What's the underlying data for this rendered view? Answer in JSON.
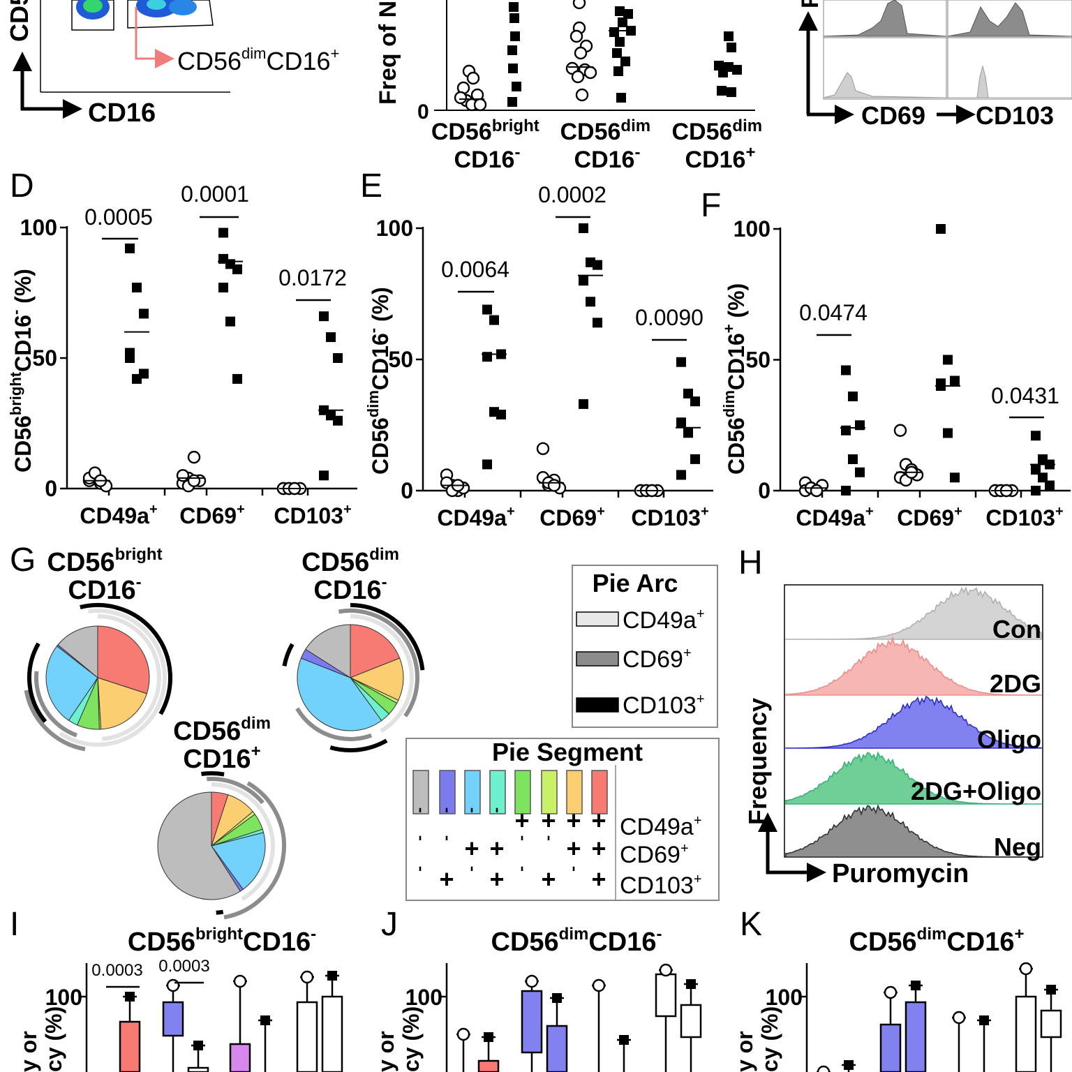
{
  "colors": {
    "ink": "#000000",
    "gate_arrow": "#f07c7c",
    "grid_box": "#888888",
    "hist_dark": "#8c8c8c",
    "hist_light": "#cfcfcf",
    "con": "#d4d4d4",
    "dg": "#f6b6b3",
    "oligo": "#8181ef",
    "dg_oligo": "#6fcf97",
    "neg": "#8f8f8f",
    "seg_grey": "#bdbdbd",
    "seg_blue": "#7b7bee",
    "seg_cyan": "#73d2fb",
    "seg_teal": "#6ef0cf",
    "seg_green": "#7ee35e",
    "seg_lime": "#c9f066",
    "seg_orange": "#fbce72",
    "seg_red": "#f77b72"
  },
  "panel_letters": {
    "D": "D",
    "E": "E",
    "F": "F",
    "G": "G",
    "H": "H",
    "I": "I",
    "J": "J",
    "K": "K"
  },
  "top_a": {
    "y_axis": "CD5",
    "x_axis": "CD16",
    "gate_label_1": "CD56",
    "gate_sup": "dim",
    "gate_label_2": "CD16",
    "gate_sup2": "+"
  },
  "top_b": {
    "y_axis": "Freq of N",
    "y_tick_0": "0",
    "cat1_a": "CD56",
    "cat1_sup": "bright",
    "cat1_b": "CD16",
    "cat1_sup2": "-",
    "cat2_a": "CD56",
    "cat2_sup": "dim",
    "cat2_b": "CD16",
    "cat2_sup2": "-",
    "cat3_a": "CD56",
    "cat3_sup": "dim",
    "cat3_b": "CD16",
    "cat3_sup2": "+"
  },
  "top_c": {
    "y_axis": "F",
    "x_label_1": "CD69",
    "x_label_2": "CD103"
  },
  "chart_data": [
    {
      "type": "scatter",
      "panel": "D",
      "ylabel_a": "CD56",
      "ylabel_sup": "bright",
      "ylabel_b": "CD16",
      "ylabel_sup2": "-",
      "ylabel_c": " (%)",
      "ylim": [
        0,
        100
      ],
      "yticks": [
        "0",
        "50",
        "100"
      ],
      "categories": [
        "CD49a",
        "CD69",
        "CD103"
      ],
      "cat_sup": "+",
      "pvalues": [
        "0.0005",
        "0.0001",
        "0.0172"
      ],
      "open": [
        [
          3,
          5,
          2,
          1,
          4,
          6,
          3
        ],
        [
          2,
          4,
          12,
          3,
          5,
          1,
          3
        ],
        [
          0,
          0,
          0,
          0,
          0,
          0,
          0
        ]
      ],
      "filled": [
        [
          92,
          77,
          67,
          50,
          42,
          44,
          52
        ],
        [
          88,
          86,
          84,
          77,
          64,
          42,
          98
        ],
        [
          66,
          58,
          50,
          30,
          28,
          26,
          5
        ]
      ],
      "open_mean": [
        3,
        4,
        0
      ],
      "filled_mean": [
        60,
        87,
        30
      ]
    },
    {
      "type": "scatter",
      "panel": "E",
      "ylabel_a": "CD56",
      "ylabel_sup": "dim",
      "ylabel_b": "CD16",
      "ylabel_sup2": "-",
      "ylabel_c": " (%)",
      "ylim": [
        0,
        100
      ],
      "yticks": [
        "0",
        "50",
        "100"
      ],
      "categories": [
        "CD49a",
        "CD69",
        "CD103"
      ],
      "cat_sup": "+",
      "pvalues": [
        "0.0064",
        "",
        "0.0002",
        "0.0090"
      ],
      "open": [
        [
          6,
          2,
          0,
          1,
          3,
          0,
          2
        ],
        [
          16,
          2,
          4,
          1,
          5,
          3,
          2
        ],
        [
          0,
          0,
          0,
          0,
          0,
          0,
          0
        ]
      ],
      "filled": [
        [
          69,
          65,
          52,
          51,
          30,
          29,
          10
        ],
        [
          100,
          87,
          86,
          80,
          72,
          64,
          33
        ],
        [
          49,
          37,
          34,
          26,
          22,
          12,
          6
        ]
      ],
      "open_mean": [
        2,
        3,
        0
      ],
      "filled_mean": [
        52,
        82,
        24
      ]
    },
    {
      "type": "scatter",
      "panel": "F",
      "ylabel_a": "CD56",
      "ylabel_sup": "dim",
      "ylabel_b": "CD16",
      "ylabel_sup2": "+",
      "ylabel_c": " (%)",
      "ylim": [
        0,
        100
      ],
      "yticks": [
        "0",
        "50",
        "100"
      ],
      "categories": [
        "CD49a",
        "CD69",
        "CD103"
      ],
      "cat_sup": "+",
      "pvalues": [
        "0.0474",
        "",
        "0.0431"
      ],
      "open": [
        [
          3,
          1,
          0,
          2,
          0,
          1,
          0
        ],
        [
          23,
          10,
          8,
          6,
          5,
          4,
          7
        ],
        [
          0,
          0,
          0,
          0,
          0,
          0,
          0
        ]
      ],
      "filled": [
        [
          46,
          36,
          25,
          23,
          12,
          7,
          0
        ],
        [
          100,
          50,
          42,
          41,
          22,
          5,
          40
        ],
        [
          21,
          12,
          10,
          8,
          5,
          2,
          0
        ]
      ],
      "open_mean": [
        1,
        7,
        0
      ],
      "filled_mean": [
        24,
        40,
        10
      ]
    },
    {
      "type": "pie",
      "panel": "G",
      "pies": [
        {
          "name_a": "CD56",
          "name_sup": "bright",
          "name_b": "CD16",
          "name_sup2": "-",
          "slices": [
            {
              "color": "seg_red",
              "value": 30
            },
            {
              "color": "seg_orange",
              "value": 19
            },
            {
              "color": "seg_lime",
              "value": 0.5
            },
            {
              "color": "seg_green",
              "value": 7
            },
            {
              "color": "seg_teal",
              "value": 3
            },
            {
              "color": "seg_cyan",
              "value": 26
            },
            {
              "color": "seg_blue",
              "value": 0.5
            },
            {
              "color": "seg_grey",
              "value": 14
            }
          ]
        },
        {
          "name_a": "CD56",
          "name_sup": "dim",
          "name_b": "CD16",
          "name_sup2": "-",
          "slices": [
            {
              "color": "seg_red",
              "value": 19
            },
            {
              "color": "seg_orange",
              "value": 13
            },
            {
              "color": "seg_lime",
              "value": 1
            },
            {
              "color": "seg_green",
              "value": 4
            },
            {
              "color": "seg_teal",
              "value": 3
            },
            {
              "color": "seg_cyan",
              "value": 41
            },
            {
              "color": "seg_blue",
              "value": 3
            },
            {
              "color": "seg_grey",
              "value": 16
            }
          ]
        },
        {
          "name_a": "CD56",
          "name_sup": "dim",
          "name_b": "CD16",
          "name_sup2": "+",
          "slices": [
            {
              "color": "seg_red",
              "value": 5
            },
            {
              "color": "seg_orange",
              "value": 9
            },
            {
              "color": "seg_lime",
              "value": 1
            },
            {
              "color": "seg_green",
              "value": 5
            },
            {
              "color": "seg_teal",
              "value": 1
            },
            {
              "color": "seg_cyan",
              "value": 19
            },
            {
              "color": "seg_blue",
              "value": 1
            },
            {
              "color": "seg_grey",
              "value": 59
            }
          ]
        }
      ],
      "legend_arc": {
        "title": "Pie Arc",
        "items": [
          "CD49a",
          "CD69",
          "CD103"
        ],
        "sup": "+"
      },
      "legend_segment": {
        "title": "Pie Segment",
        "colors": [
          "seg_grey",
          "seg_blue",
          "seg_cyan",
          "seg_teal",
          "seg_green",
          "seg_lime",
          "seg_orange",
          "seg_red"
        ],
        "rows": [
          {
            "label": "CD49a",
            "marks": [
              "-",
              "-",
              "-",
              "-",
              "+",
              "+",
              "+",
              "+"
            ]
          },
          {
            "label": "CD69",
            "marks": [
              "-",
              "-",
              "+",
              "+",
              "-",
              "-",
              "+",
              "+"
            ]
          },
          {
            "label": "CD103",
            "marks": [
              "-",
              "+",
              "-",
              "+",
              "-",
              "+",
              "-",
              "+"
            ]
          }
        ],
        "sup": "+"
      }
    },
    {
      "type": "area",
      "panel": "H",
      "ylabel": "Frequency",
      "xlabel": "Puromycin",
      "series": [
        {
          "name": "Con",
          "color": "con",
          "peak": 0.72
        },
        {
          "name": "2DG",
          "color": "dg",
          "peak": 0.42
        },
        {
          "name": "Oligo",
          "color": "oligo",
          "peak": 0.55
        },
        {
          "name": "2DG+Oligo",
          "color": "dg_oligo",
          "peak": 0.33
        },
        {
          "name": "Neg",
          "color": "neg",
          "peak": 0.33
        }
      ]
    },
    {
      "type": "box",
      "panel": "I",
      "title_a": "CD56",
      "title_sup": "bright",
      "title_b": "CD16",
      "title_sup2": "-",
      "ylabel_a": "y or",
      "ylabel_b": "cy (%)",
      "ytick": "100",
      "pvalues": [
        "0.0003",
        "0.0003"
      ]
    },
    {
      "type": "box",
      "panel": "J",
      "title_a": "CD56",
      "title_sup": "dim",
      "title_b": "CD16",
      "title_sup2": "-",
      "ylabel_a": "y or",
      "ylabel_b": "cy (%)",
      "ytick": "100"
    },
    {
      "type": "box",
      "panel": "K",
      "title_a": "CD56",
      "title_sup": "dim",
      "title_b": "CD16",
      "title_sup2": "+",
      "ylabel_a": "y or",
      "ylabel_b": "cy (%)",
      "ytick": "100"
    }
  ]
}
